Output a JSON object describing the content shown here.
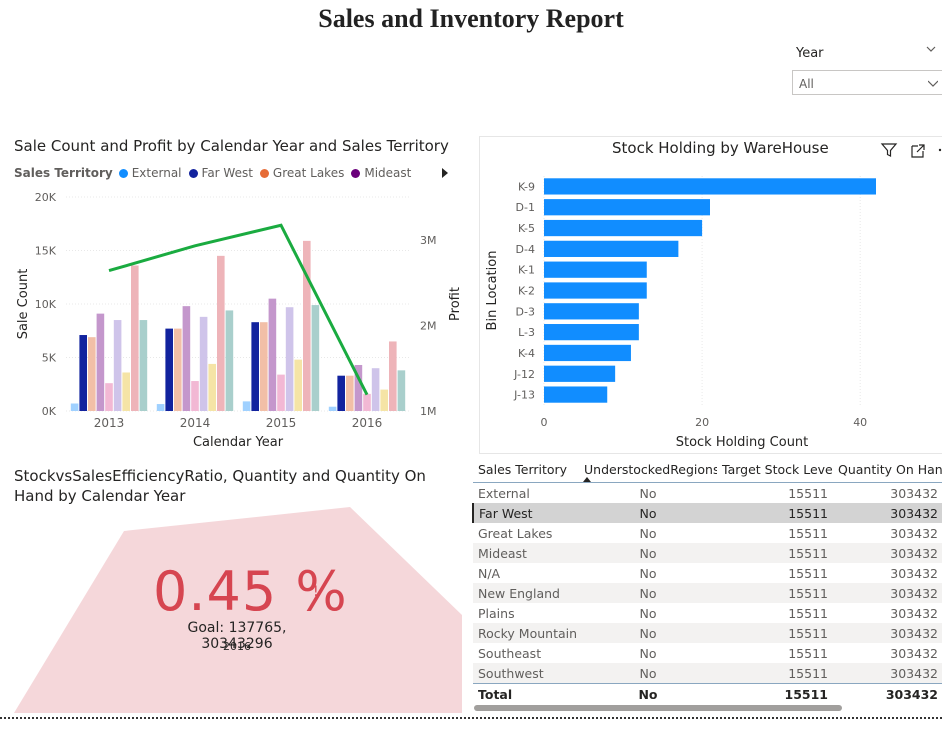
{
  "report": {
    "title": "Sales and Inventory Report"
  },
  "slicer": {
    "label": "Year",
    "value": "All"
  },
  "combo_chart": {
    "title": "Sale Count and Profit by Calendar Year and Sales Territory",
    "legend_title": "Sales Territory",
    "legend": [
      {
        "name": "External",
        "color": "#118DFF"
      },
      {
        "name": "Far West",
        "color": "#12239E"
      },
      {
        "name": "Great Lakes",
        "color": "#E66C37"
      },
      {
        "name": "Mideast",
        "color": "#6B007B"
      }
    ]
  },
  "warehouse_chart": {
    "title": "Stock Holding by WareHouse"
  },
  "kpi": {
    "title": "StockvsSalesEfficiencyRatio, Quantity and Quantity On Hand by Calendar Year",
    "value": "0.45 %",
    "flag": "!",
    "goal": "Goal: 137765, 30343296",
    "year": "2016",
    "color": "#D64550"
  },
  "table": {
    "columns": [
      "Sales Territory",
      "UnderstockedRegions",
      "Target Stock Level",
      "Quantity On Hand"
    ],
    "rows": [
      [
        "External",
        "No",
        "15511",
        "303432"
      ],
      [
        "Far West",
        "No",
        "15511",
        "303432"
      ],
      [
        "Great Lakes",
        "No",
        "15511",
        "303432"
      ],
      [
        "Mideast",
        "No",
        "15511",
        "303432"
      ],
      [
        "N/A",
        "No",
        "15511",
        "303432"
      ],
      [
        "New England",
        "No",
        "15511",
        "303432"
      ],
      [
        "Plains",
        "No",
        "15511",
        "303432"
      ],
      [
        "Rocky Mountain",
        "No",
        "15511",
        "303432"
      ],
      [
        "Southeast",
        "No",
        "15511",
        "303432"
      ],
      [
        "Southwest",
        "No",
        "15511",
        "303432"
      ]
    ],
    "total": [
      "Total",
      "No",
      "15511",
      "303432"
    ]
  },
  "chart_data": [
    {
      "type": "bar",
      "title": "Sale Count and Profit by Calendar Year and Sales Territory",
      "xlabel": "Calendar Year",
      "ylabel": "Sale Count",
      "y2label": "Profit",
      "categories": [
        "2013",
        "2014",
        "2015",
        "2016"
      ],
      "ylim": [
        0,
        20000
      ],
      "yticks": [
        "0K",
        "5K",
        "10K",
        "15K",
        "20K"
      ],
      "y2lim": [
        1000000,
        3500000
      ],
      "y2ticks": [
        "1M",
        "2M",
        "3M"
      ],
      "series_colors": [
        "#A0D1FF",
        "#12239E",
        "#F2BFA7",
        "#C497CC",
        "#F2B8D4",
        "#CFC4EA",
        "#F5E4A6",
        "#EEB4B9",
        "#A9CFCC"
      ],
      "series": [
        {
          "values": [
            700,
            650,
            900,
            400
          ]
        },
        {
          "values": [
            7100,
            7700,
            8300,
            3300
          ]
        },
        {
          "values": [
            6900,
            7700,
            8300,
            3300
          ]
        },
        {
          "values": [
            9100,
            9800,
            10500,
            4300
          ]
        },
        {
          "values": [
            2600,
            2800,
            3400,
            1600
          ]
        },
        {
          "values": [
            8500,
            8800,
            9700,
            4000
          ]
        },
        {
          "values": [
            3600,
            4400,
            4800,
            2000
          ]
        },
        {
          "values": [
            13600,
            14500,
            15900,
            6500
          ]
        },
        {
          "values": [
            8500,
            9400,
            9900,
            3800
          ]
        }
      ],
      "line": {
        "name": "Profit",
        "color": "#1AAB40",
        "values": [
          2640000,
          2930000,
          3170000,
          1190000
        ]
      }
    },
    {
      "type": "bar",
      "orientation": "horizontal",
      "title": "Stock Holding by WareHouse",
      "xlabel": "Stock Holding Count",
      "ylabel": "Bin Location",
      "xlim": [
        0,
        42
      ],
      "xticks": [
        0,
        20,
        40
      ],
      "color": "#118DFF",
      "categories": [
        "K-9",
        "D-1",
        "K-5",
        "D-4",
        "K-1",
        "K-2",
        "D-3",
        "L-3",
        "K-4",
        "J-12",
        "J-13"
      ],
      "values": [
        42,
        21,
        20,
        17,
        13,
        13,
        12,
        12,
        11,
        9,
        8
      ]
    }
  ]
}
